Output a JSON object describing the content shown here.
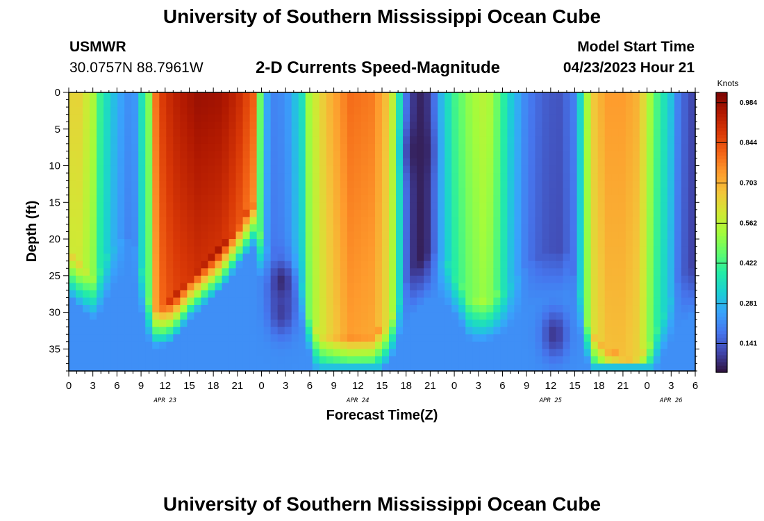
{
  "header": {
    "title": "University of Southern Mississippi Ocean Cube",
    "station": "USMWR",
    "coords": "30.0757N  88.7961W",
    "chart_title": "2-D Currents Speed-Magnitude",
    "model_start_label": "Model Start Time",
    "model_start_value": "04/23/2023 Hour 21"
  },
  "footer": {
    "title": "University of Southern Mississippi Ocean Cube"
  },
  "colors": {
    "background": "#ffffff",
    "text": "#000000",
    "colormap": [
      "#30123b",
      "#4145ab",
      "#4675ed",
      "#39a2fc",
      "#1bcfd4",
      "#24eca6",
      "#61fc6c",
      "#a4fc3b",
      "#d1e834",
      "#f3c63a",
      "#fe9b2d",
      "#f36315",
      "#d93806",
      "#b11901",
      "#7a0403"
    ]
  },
  "chart_data": {
    "type": "heatmap",
    "title": "2-D Currents Speed-Magnitude",
    "xlabel": "Forecast Time(Z)",
    "ylabel": "Depth (ft)",
    "x_range_hours": [
      0,
      78
    ],
    "ylim": [
      0,
      38
    ],
    "x_tick_labels": [
      "0",
      "3",
      "6",
      "9",
      "12",
      "15",
      "18",
      "21",
      "0",
      "3",
      "6",
      "9",
      "12",
      "15",
      "18",
      "21",
      "0",
      "3",
      "6",
      "9",
      "12",
      "15",
      "18",
      "21",
      "0",
      "3",
      "6"
    ],
    "date_labels": [
      {
        "label": "APR 23",
        "hour": 12
      },
      {
        "label": "APR 24",
        "hour": 36
      },
      {
        "label": "APR 25",
        "hour": 60
      },
      {
        "label": "APR 26",
        "hour": 75
      }
    ],
    "y_ticks": [
      0,
      5,
      10,
      15,
      20,
      25,
      30,
      35
    ],
    "y_tick_labels": [
      "0",
      "5",
      "10",
      "15",
      "20",
      "25",
      "30",
      "35"
    ],
    "colorbar": {
      "label": "Knots",
      "min": 0.04,
      "max": 1.02,
      "ticks": [
        0.141,
        0.281,
        0.422,
        0.562,
        0.703,
        0.844,
        0.984
      ],
      "tick_labels": [
        "0.141",
        "0.281",
        "0.422",
        "0.562",
        "0.703",
        "0.844",
        "0.984"
      ]
    },
    "surface_speed_by_hour": [
      [
        0,
        0.63
      ],
      [
        1,
        0.66
      ],
      [
        3,
        0.55
      ],
      [
        4,
        0.4
      ],
      [
        6,
        0.27
      ],
      [
        8,
        0.2
      ],
      [
        10,
        0.5
      ],
      [
        11,
        0.85
      ],
      [
        13,
        0.93
      ],
      [
        16,
        0.98
      ],
      [
        19,
        0.97
      ],
      [
        21,
        0.92
      ],
      [
        23,
        0.82
      ],
      [
        24,
        0.4
      ],
      [
        25,
        0.2
      ],
      [
        27,
        0.22
      ],
      [
        29,
        0.35
      ],
      [
        30,
        0.55
      ],
      [
        32,
        0.68
      ],
      [
        35,
        0.8
      ],
      [
        38,
        0.78
      ],
      [
        40,
        0.65
      ],
      [
        41,
        0.4
      ],
      [
        42,
        0.18
      ],
      [
        43,
        0.08
      ],
      [
        44,
        0.06
      ],
      [
        45,
        0.1
      ],
      [
        46,
        0.25
      ],
      [
        48,
        0.42
      ],
      [
        50,
        0.52
      ],
      [
        52,
        0.57
      ],
      [
        53,
        0.5
      ],
      [
        55,
        0.32
      ],
      [
        57,
        0.2
      ],
      [
        59,
        0.15
      ],
      [
        61,
        0.13
      ],
      [
        63,
        0.2
      ],
      [
        64,
        0.4
      ],
      [
        65,
        0.65
      ],
      [
        67,
        0.74
      ],
      [
        69,
        0.74
      ],
      [
        71,
        0.7
      ],
      [
        73,
        0.45
      ],
      [
        75,
        0.3
      ],
      [
        76,
        0.18
      ],
      [
        78,
        0.1
      ]
    ],
    "high_speed_bottom_depth_by_hour": [
      [
        0,
        22
      ],
      [
        2,
        24
      ],
      [
        3,
        25
      ],
      [
        4,
        24
      ],
      [
        6,
        20
      ],
      [
        8,
        20
      ],
      [
        10,
        28
      ],
      [
        11,
        29
      ],
      [
        13,
        28
      ],
      [
        15,
        25
      ],
      [
        17,
        23
      ],
      [
        19,
        21
      ],
      [
        21,
        18
      ],
      [
        23,
        15
      ],
      [
        24,
        20
      ],
      [
        26,
        22
      ],
      [
        28,
        22
      ],
      [
        29,
        26
      ],
      [
        30,
        30
      ],
      [
        31,
        33
      ],
      [
        35,
        33
      ],
      [
        38,
        33
      ],
      [
        40,
        31
      ],
      [
        41,
        28
      ],
      [
        43,
        24
      ],
      [
        45,
        22
      ],
      [
        47,
        23
      ],
      [
        49,
        26
      ],
      [
        50,
        28
      ],
      [
        52,
        28
      ],
      [
        54,
        27
      ],
      [
        56,
        25
      ],
      [
        58,
        23
      ],
      [
        60,
        22
      ],
      [
        62,
        22
      ],
      [
        64,
        28
      ],
      [
        65,
        33
      ],
      [
        67,
        35
      ],
      [
        70,
        36
      ],
      [
        72,
        35
      ],
      [
        74,
        30
      ],
      [
        76,
        26
      ],
      [
        78,
        24
      ]
    ],
    "minima": [
      {
        "hour": 26.5,
        "depth": 26,
        "value": 0.07
      },
      {
        "hour": 26.5,
        "depth": 30,
        "value": 0.1
      },
      {
        "hour": 43.5,
        "depth": 8,
        "value": 0.06
      },
      {
        "hour": 60.5,
        "depth": 33,
        "value": 0.09
      }
    ]
  }
}
